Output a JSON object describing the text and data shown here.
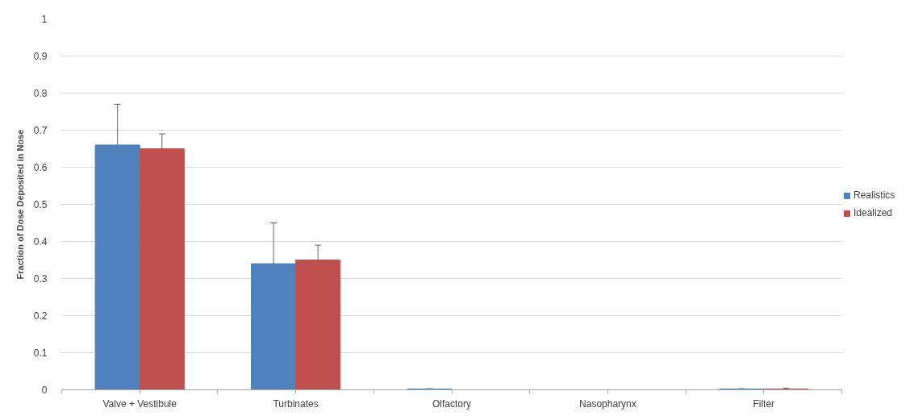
{
  "chart_data": {
    "type": "bar",
    "ylabel": "Fraction of Dose Deposited in Nose",
    "categories": [
      "Valve + Vestibule",
      "Turbinates",
      "Olfactory",
      "Nasopharynx",
      "Filter"
    ],
    "series": [
      {
        "name": "Realistics",
        "color": "#4f81bd",
        "values": [
          0.66,
          0.34,
          0.002,
          0,
          0.002
        ],
        "errors": [
          0.11,
          0.11,
          0.001,
          null,
          0.001
        ]
      },
      {
        "name": "Idealized",
        "color": "#c0504d",
        "values": [
          0.65,
          0.35,
          0,
          0,
          0.002
        ],
        "errors": [
          0.04,
          0.04,
          null,
          null,
          0.002
        ]
      }
    ],
    "ylim": [
      0,
      1
    ],
    "yticks": [
      0,
      0.1,
      0.2,
      0.3,
      0.4,
      0.5,
      0.6,
      0.7,
      0.8,
      0.9,
      1
    ],
    "grid": "y",
    "legend": "right"
  }
}
